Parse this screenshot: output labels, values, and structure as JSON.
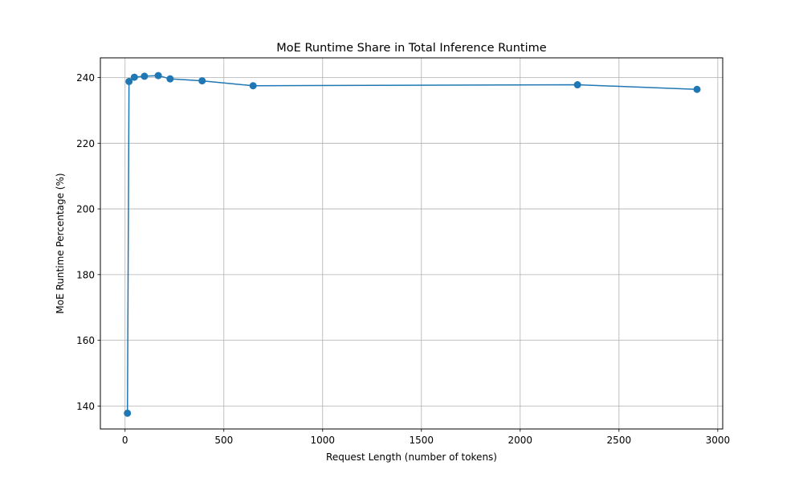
{
  "chart_data": {
    "type": "line",
    "title": "MoE Runtime Share in Total Inference Runtime",
    "xlabel": "Request Length (number of tokens)",
    "ylabel": "MoE Runtime Percentage (%)",
    "xlim": [
      -125,
      3025
    ],
    "ylim": [
      133,
      246
    ],
    "xticks": [
      0,
      500,
      1000,
      1500,
      2000,
      2500,
      3000
    ],
    "yticks": [
      140,
      160,
      180,
      200,
      220,
      240
    ],
    "grid": true,
    "series": [
      {
        "color": "#1f77b4",
        "marker": "circle",
        "x": [
          12,
          20,
          47,
          98,
          168,
          228,
          390,
          648,
          2290,
          2895
        ],
        "y": [
          137.8,
          238.8,
          240.1,
          240.4,
          240.6,
          239.6,
          239.0,
          237.5,
          237.8,
          236.4
        ]
      }
    ]
  }
}
